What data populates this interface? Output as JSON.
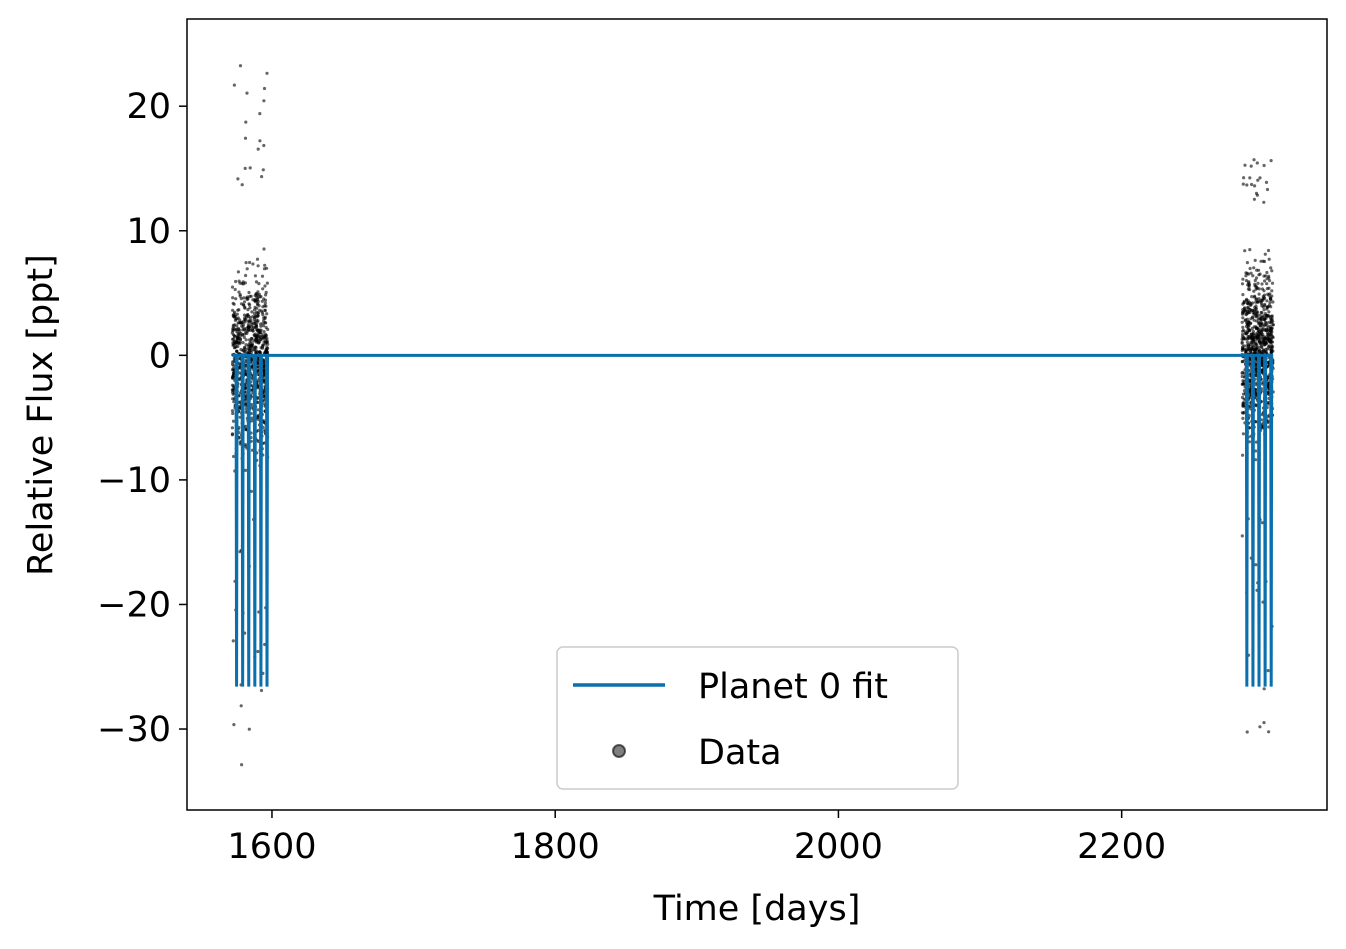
{
  "chart_data": {
    "type": "scatter",
    "xlabel": "Time [days]",
    "ylabel": "Relative Flux [ppt]",
    "xlim": [
      1540,
      2345
    ],
    "ylim": [
      -36.5,
      27
    ],
    "xticks": [
      1600,
      1800,
      2000,
      2200
    ],
    "xtick_labels": [
      "1600",
      "1800",
      "2000",
      "2200"
    ],
    "yticks": [
      20,
      10,
      0,
      -10,
      -20,
      -30
    ],
    "ytick_labels": [
      "20",
      "10",
      "0",
      "−10",
      "−20",
      "−30"
    ],
    "grid": false,
    "legend": {
      "placement": "lower center",
      "entries": [
        {
          "label": "Planet 0 fit",
          "marker": "line",
          "color": "#0a6fad"
        },
        {
          "label": "Data",
          "marker": "circle",
          "color": "#000000"
        }
      ]
    },
    "series": [
      {
        "name": "Data",
        "kind": "scatter",
        "color": "#000000",
        "segments": [
          {
            "x_range": [
              1572,
              1597
            ],
            "core_flux": [
              -13,
              12
            ],
            "outlier_min": -34,
            "outlier_max": 24
          },
          {
            "x_range": [
              2285,
              2307
            ],
            "core_flux": [
              -11,
              12
            ],
            "outlier_min": -30.5,
            "outlier_max": 15.8
          }
        ]
      },
      {
        "name": "Planet 0 fit",
        "kind": "line",
        "color": "#0a6fad",
        "baseline": 0,
        "x_range": [
          1572,
          2307
        ],
        "transit_depth": -26.6,
        "transit_times": [
          1575.0,
          1579.3,
          1583.6,
          1587.9,
          1592.2,
          1596.5,
          2288.4,
          2292.7,
          2297.0,
          2301.3,
          2305.6
        ]
      }
    ]
  },
  "colors": {
    "fit": "#0a6fad",
    "data": "#000000",
    "axes": "#000000",
    "legend_border": "#cccccc"
  }
}
